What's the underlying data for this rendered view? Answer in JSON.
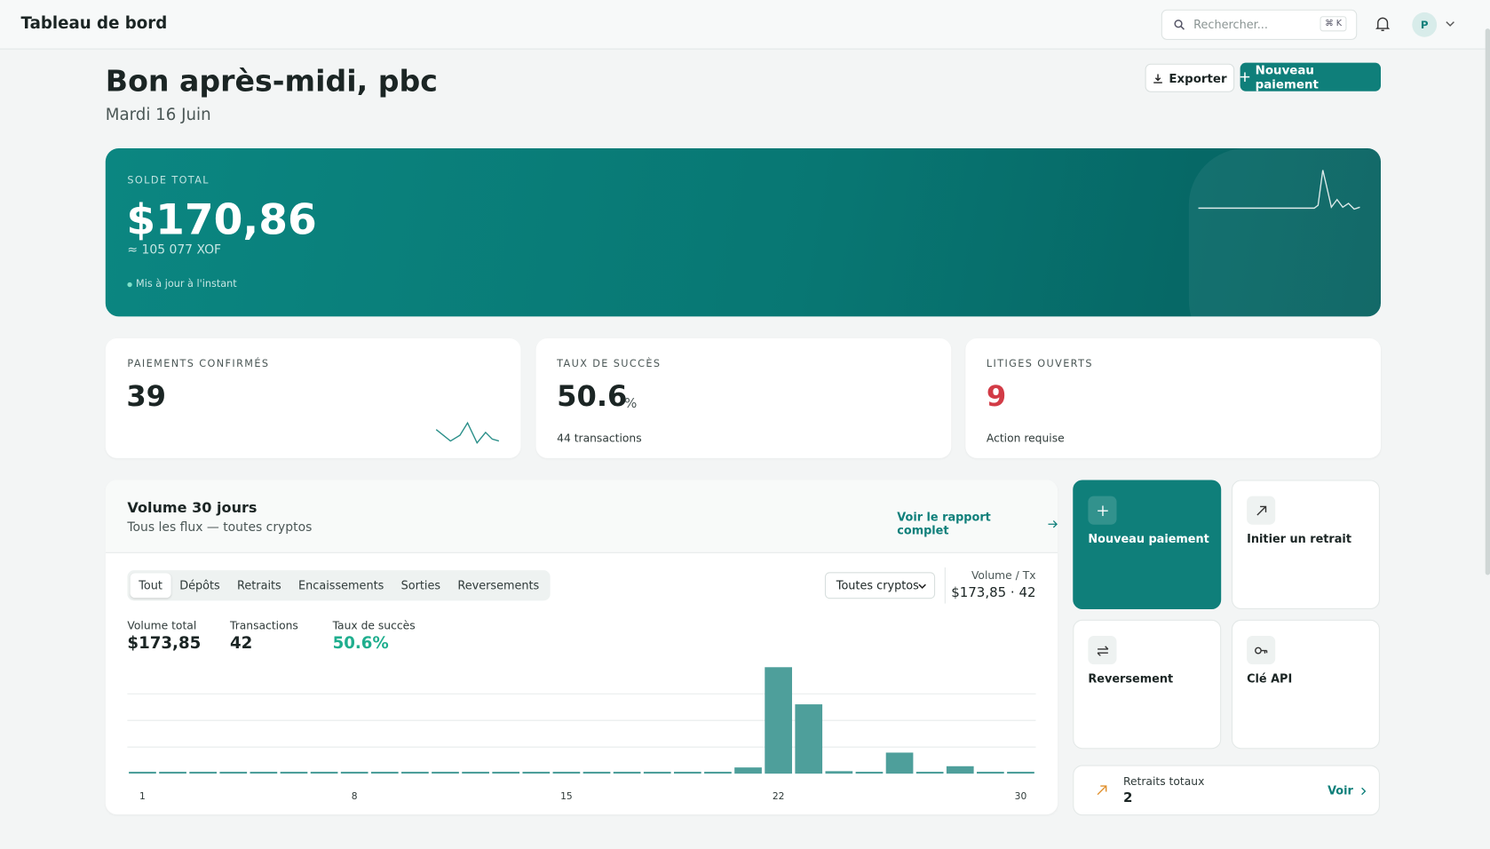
{
  "topbar": {
    "title": "Tableau de bord",
    "search_placeholder": "Rechercher...",
    "shortcut": "⌘ K",
    "avatar": "P"
  },
  "header": {
    "greeting": "Bon après-midi, pbc",
    "date": "Mardi 16 Juin",
    "export": "Exporter",
    "new_payment": "Nouveau paiement"
  },
  "balance": {
    "label": "SOLDE TOTAL",
    "amount": "$170,86",
    "converted": "≈ 105 077 XOF",
    "status": "Mis à jour à l'instant"
  },
  "stats": [
    {
      "label": "PAIEMENTS CONFIRMÉS",
      "value": 39
    },
    {
      "label": "TAUX DE SUCCÈS",
      "value": 50.6,
      "unit": "%",
      "note": "44 transactions"
    },
    {
      "label": "LITIGES OUVERTS",
      "value": 9,
      "note": "Action requise"
    }
  ],
  "volume": {
    "title": "Volume 30 jours",
    "subtitle": "Tous les flux — toutes cryptos",
    "link": "Voir le rapport complet",
    "tabs": [
      "Tout",
      "Dépôts",
      "Retraits",
      "Encaissements",
      "Sorties",
      "Reversements"
    ],
    "select": "Toutes cryptos",
    "summary_label": "Volume / Tx",
    "summary_value": "$173,85 · 42",
    "metrics": [
      {
        "label": "Volume total",
        "value": "$173,85"
      },
      {
        "label": "Transactions",
        "value": 42
      },
      {
        "label": "Taux de succès",
        "value": "50.6%"
      }
    ]
  },
  "chart_data": {
    "type": "bar",
    "categories": [
      "1",
      null,
      null,
      null,
      null,
      null,
      null,
      "8",
      null,
      null,
      null,
      null,
      null,
      null,
      "15",
      null,
      null,
      null,
      null,
      null,
      null,
      "22",
      null,
      null,
      null,
      null,
      null,
      null,
      null,
      "30"
    ],
    "values": [
      0,
      0,
      0,
      0,
      0,
      0,
      0,
      0,
      0,
      0,
      0,
      0,
      0,
      0,
      0,
      0,
      0,
      0,
      0,
      0,
      5,
      86,
      56,
      2,
      0,
      17,
      0,
      6,
      0,
      0
    ],
    "color": "#4e9f9b",
    "ylim": [
      0,
      86
    ]
  },
  "actions": [
    {
      "label": "Nouveau paiement"
    },
    {
      "label": "Initier un retrait"
    },
    {
      "label": "Reversement"
    },
    {
      "label": "Clé API"
    }
  ],
  "withdrawals": {
    "label": "Retraits totaux",
    "value": 2,
    "link": "Voir"
  }
}
